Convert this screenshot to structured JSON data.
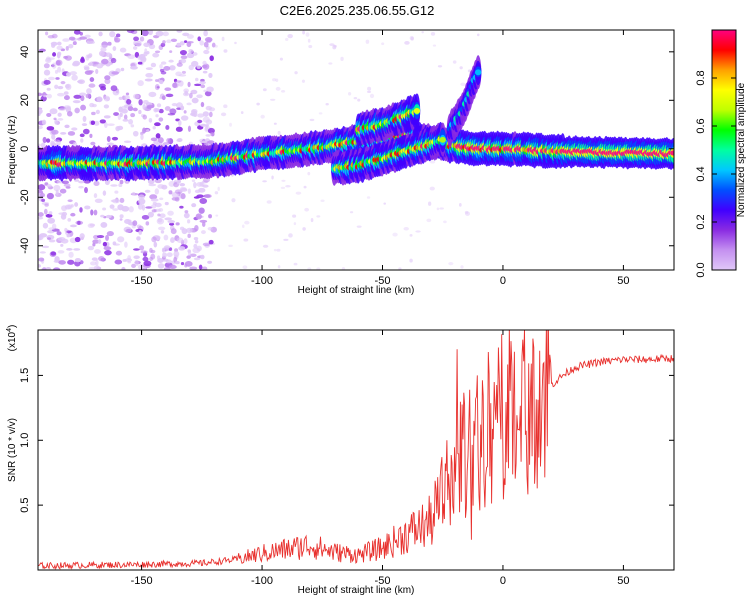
{
  "figure_title": "C2E6.2025.235.06.55.G12",
  "colors": {
    "snr_line": "#e8312e",
    "colormap": [
      "#e0c8f8",
      "#c490f0",
      "#8a2be2",
      "#4000ff",
      "#0050ff",
      "#00c8ff",
      "#00ffa0",
      "#00ff00",
      "#c0ff00",
      "#ffff00",
      "#ffa000",
      "#ff0000",
      "#ff0080"
    ]
  },
  "chart_data": [
    {
      "type": "heatmap",
      "title": "",
      "xlabel": "Height of straight line (km)",
      "ylabel": "Frequency (Hz)",
      "xlim": [
        -193,
        71
      ],
      "ylim": [
        -50,
        49
      ],
      "xticks": [
        -150,
        -100,
        -50,
        0,
        50
      ],
      "xtick_labels": [
        "-150",
        "-100",
        "-50",
        "0",
        "50"
      ],
      "yticks": [
        -40,
        -20,
        0,
        20,
        40
      ],
      "ytick_labels": [
        "-40",
        "-20",
        "0",
        "20",
        "40"
      ],
      "ridges": [
        {
          "name": "main-trace",
          "points": [
            [
              -193,
              -6
            ],
            [
              -150,
              -6
            ],
            [
              -120,
              -5
            ],
            [
              -100,
              -2
            ],
            [
              -80,
              0
            ],
            [
              -60,
              3
            ],
            [
              -45,
              6
            ],
            [
              -30,
              3
            ],
            [
              -20,
              1
            ],
            [
              -10,
              0
            ],
            [
              0,
              0
            ],
            [
              20,
              -1
            ],
            [
              40,
              -1.5
            ],
            [
              71,
              -2
            ]
          ]
        },
        {
          "name": "lower-branch",
          "points": [
            [
              -70,
              -8
            ],
            [
              -60,
              -7
            ],
            [
              -50,
              -4
            ],
            [
              -40,
              -1
            ],
            [
              -30,
              2
            ],
            [
              -25,
              4
            ]
          ]
        },
        {
          "name": "upper-branch",
          "points": [
            [
              -60,
              8
            ],
            [
              -50,
              10
            ],
            [
              -40,
              14
            ],
            [
              -35,
              16
            ]
          ]
        },
        {
          "name": "rising-tail",
          "points": [
            [
              -22,
              8
            ],
            [
              -18,
              14
            ],
            [
              -15,
              20
            ],
            [
              -12,
              28
            ],
            [
              -10,
              32
            ]
          ]
        }
      ],
      "colorbar": {
        "label": "Normalized spectral amplitude",
        "range": [
          0,
          1
        ],
        "ticks": [
          0.0,
          0.2,
          0.4,
          0.6,
          0.8
        ],
        "tick_labels": [
          "0.0",
          "0.2",
          "0.4",
          "0.6",
          "0.8"
        ]
      }
    },
    {
      "type": "line",
      "title": "",
      "xlabel": "Height of straight line (km)",
      "ylabel": "SNR (10 * v/v)",
      "y_exponent_label": "(x10",
      "y_exponent_value": "4",
      "y_exponent_close": ")",
      "xlim": [
        -193,
        71
      ],
      "ylim": [
        0,
        1.85
      ],
      "xticks": [
        -150,
        -100,
        -50,
        0,
        50
      ],
      "xtick_labels": [
        "-150",
        "-100",
        "-50",
        "0",
        "50"
      ],
      "yticks": [
        0.5,
        1.0,
        1.5
      ],
      "ytick_labels": [
        "0.5",
        "1.0",
        "1.5"
      ],
      "series": [
        {
          "name": "SNR",
          "envelope": [
            [
              -193,
              0.03
            ],
            [
              -150,
              0.04
            ],
            [
              -125,
              0.05
            ],
            [
              -110,
              0.08
            ],
            [
              -100,
              0.12
            ],
            [
              -90,
              0.15
            ],
            [
              -80,
              0.18
            ],
            [
              -70,
              0.13
            ],
            [
              -60,
              0.11
            ],
            [
              -50,
              0.16
            ],
            [
              -40,
              0.26
            ],
            [
              -30,
              0.35
            ],
            [
              -25,
              0.55
            ],
            [
              -20,
              0.75
            ],
            [
              -15,
              0.85
            ],
            [
              -10,
              0.95
            ],
            [
              -5,
              1.05
            ],
            [
              0,
              1.12
            ],
            [
              5,
              1.2
            ],
            [
              10,
              1.25
            ],
            [
              15,
              1.3
            ],
            [
              20,
              1.42
            ],
            [
              25,
              1.5
            ],
            [
              30,
              1.56
            ],
            [
              40,
              1.6
            ],
            [
              50,
              1.62
            ],
            [
              60,
              1.62
            ],
            [
              71,
              1.63
            ]
          ]
        }
      ]
    }
  ]
}
